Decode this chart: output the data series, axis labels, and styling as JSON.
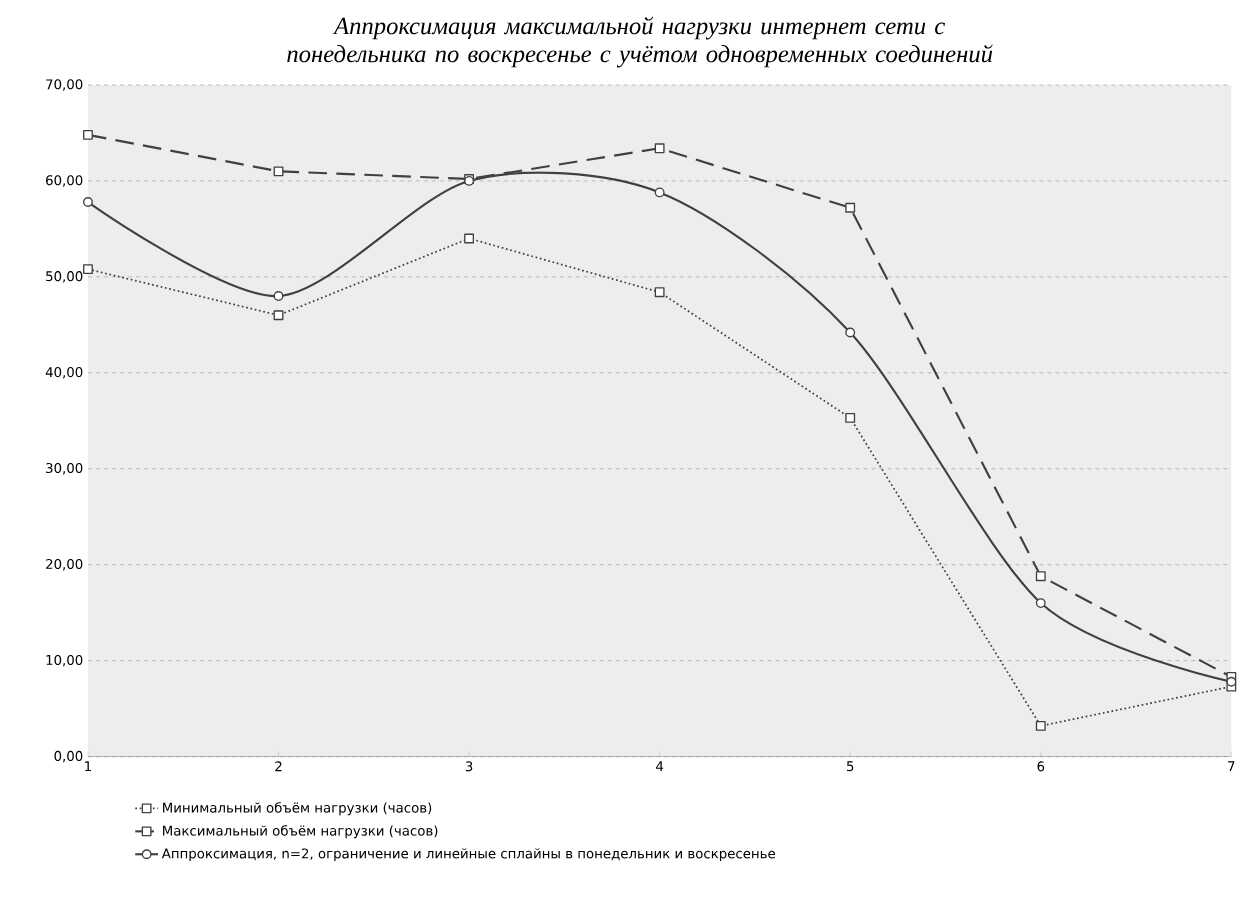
{
  "chart_data": {
    "type": "line",
    "title": "Аппроксимация максимальной нагрузки интернет сети с понедельника по воскресенье с учётом одновременных соединений",
    "x": [
      1,
      2,
      3,
      4,
      5,
      6,
      7
    ],
    "series": [
      {
        "name": "Минимальный объём нагрузки (часов)",
        "color": "#404040",
        "values": [
          50.8,
          46.0,
          54.0,
          48.4,
          35.3,
          3.2,
          7.3
        ],
        "line_style": "dotted",
        "marker": "square"
      },
      {
        "name": "Максимальный объём нагрузки (часов)",
        "color": "#404040",
        "values": [
          64.8,
          61.0,
          60.2,
          63.4,
          57.2,
          18.8,
          8.3
        ],
        "line_style": "dashed",
        "marker": "square"
      },
      {
        "name": "Аппроксимация, n=2, ограничение и линейные сплайны в понедельник и воскресенье",
        "color": "#404040",
        "values": [
          57.8,
          48.0,
          60.0,
          58.8,
          44.2,
          16.0,
          7.8
        ],
        "line_style": "solid",
        "marker": "circle"
      }
    ],
    "xlim": [
      1,
      7
    ],
    "xticks": [
      1,
      2,
      3,
      4,
      5,
      6,
      7
    ],
    "ylim": [
      0,
      70
    ],
    "yticks": [
      {
        "value": 0,
        "label": "0,00"
      },
      {
        "value": 10,
        "label": "10,00"
      },
      {
        "value": 20,
        "label": "20,00"
      },
      {
        "value": 30,
        "label": "30,00"
      },
      {
        "value": 40,
        "label": "40,00"
      },
      {
        "value": 50,
        "label": "50,00"
      },
      {
        "value": 60,
        "label": "60,00"
      },
      {
        "value": 70,
        "label": "70,00"
      }
    ],
    "grid": "y",
    "legend": "bottom"
  }
}
